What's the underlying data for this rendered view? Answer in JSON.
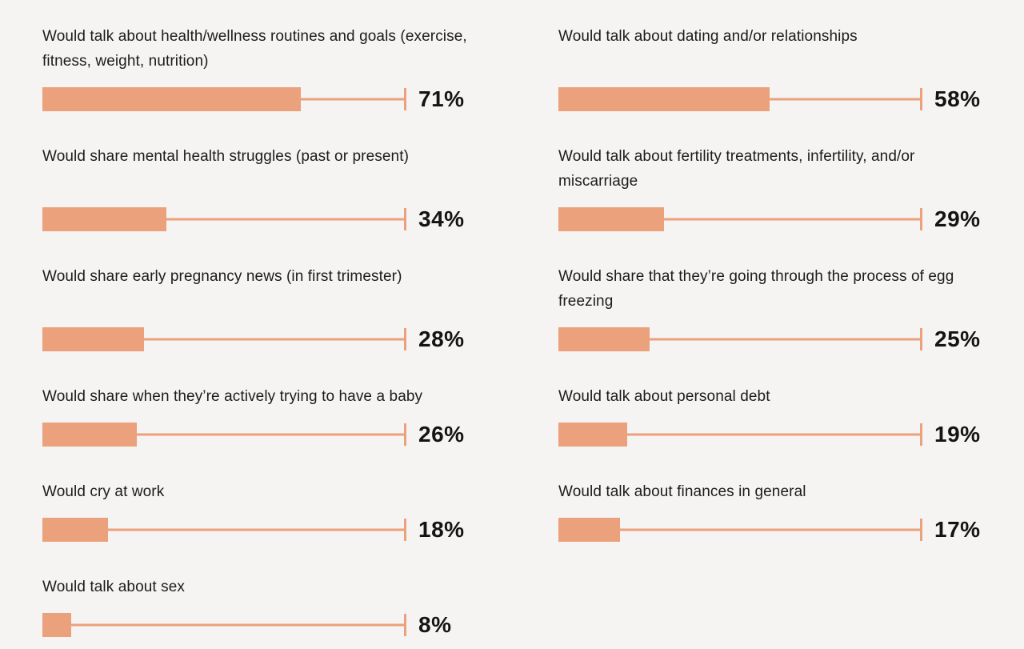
{
  "chart_data": {
    "type": "bar",
    "orientation": "horizontal",
    "title": "",
    "xlabel": "",
    "ylabel": "",
    "unit": "%",
    "xlim": [
      0,
      100
    ],
    "grid": false,
    "value_label_position": "right-of-track-end",
    "categories": [
      "Would talk about health/wellness routines and goals (exercise, fitness, weight, nutrition)",
      "Would share mental health struggles (past or present)",
      "Would share early pregnancy news (in first trimester)",
      "Would share when they’re actively trying to have a baby",
      "Would cry at work",
      "Would talk about sex",
      "Would talk about dating and/or relationships",
      "Would talk about fertility treatments, infertility, and/or miscarriage",
      "Would share that they’re going through the process of egg freezing",
      "Would talk about personal debt",
      "Would talk about finances in general"
    ],
    "values": [
      71,
      34,
      28,
      26,
      18,
      8,
      58,
      29,
      25,
      19,
      17
    ],
    "layout": {
      "columns": 2,
      "column_item_indexes": [
        [
          0,
          1,
          2,
          3,
          4,
          5
        ],
        [
          6,
          7,
          8,
          9,
          10
        ]
      ],
      "bars_bottom_aligned_per_row": true
    },
    "colors": {
      "bar_fill": "#EBA17B",
      "track_line": "#EBA17B",
      "end_tick": "#EBA17B",
      "value_text": "#141414",
      "label_text": "#1C1C1C",
      "background": "#F5F4F3"
    }
  }
}
